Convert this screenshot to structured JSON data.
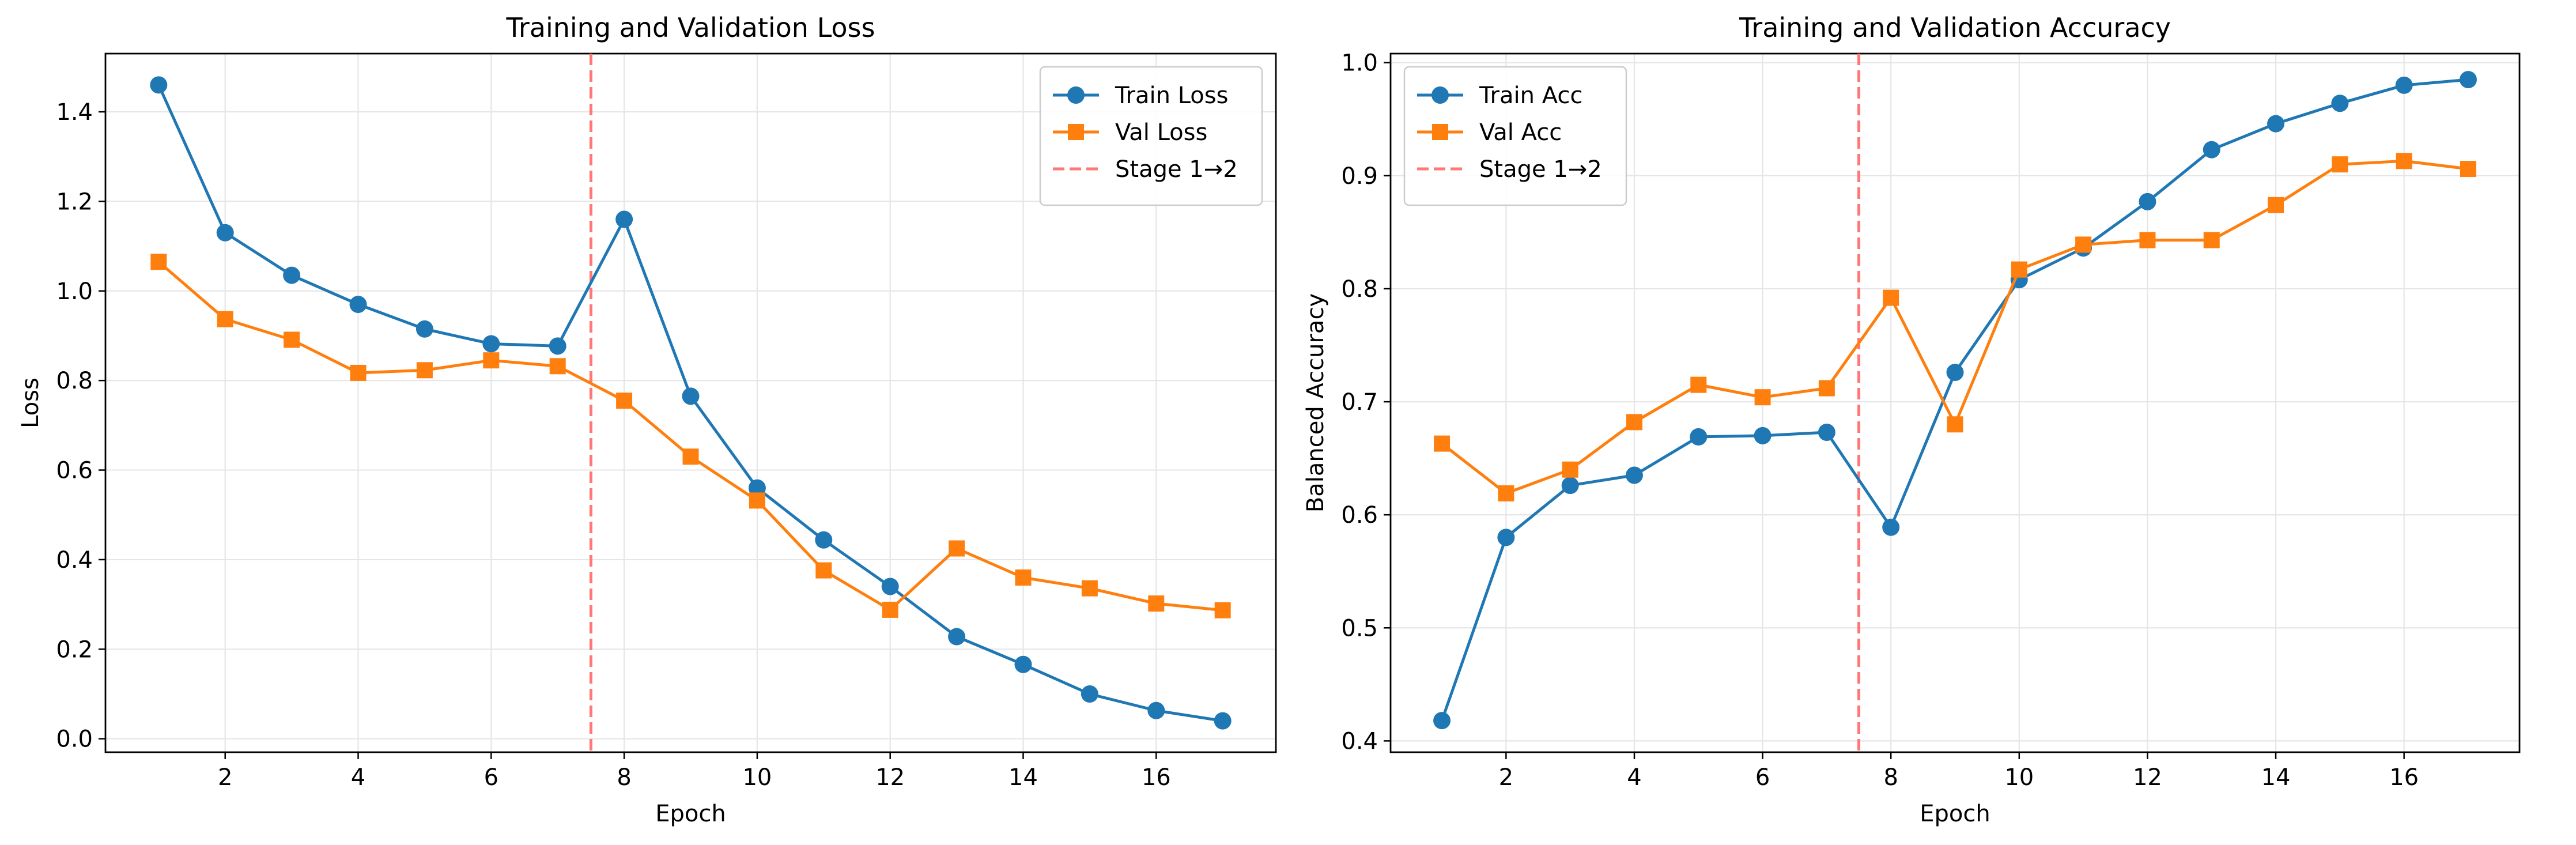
{
  "chart_data": [
    {
      "type": "line",
      "title": "Training and Validation Loss",
      "xlabel": "Epoch",
      "ylabel": "Loss",
      "x": [
        1,
        2,
        3,
        4,
        5,
        6,
        7,
        8,
        9,
        10,
        11,
        12,
        13,
        14,
        15,
        16,
        17
      ],
      "xlim": [
        0.2,
        17.8
      ],
      "ylim": [
        -0.03,
        1.53
      ],
      "xticks": [
        2,
        4,
        6,
        8,
        10,
        12,
        14,
        16
      ],
      "xtick_labels": [
        "2",
        "4",
        "6",
        "8",
        "10",
        "12",
        "14",
        "16"
      ],
      "yticks": [
        0.0,
        0.2,
        0.4,
        0.6,
        0.8,
        1.0,
        1.2,
        1.4
      ],
      "ytick_labels": [
        "0.0",
        "0.2",
        "0.4",
        "0.6",
        "0.8",
        "1.0",
        "1.2",
        "1.4"
      ],
      "grid": true,
      "legend_position": "upper right",
      "series": [
        {
          "name": "Train Loss",
          "color": "#1f77b4",
          "marker": "circle",
          "values": [
            1.46,
            1.13,
            1.035,
            0.97,
            0.915,
            0.882,
            0.877,
            1.16,
            0.765,
            0.56,
            0.444,
            0.34,
            0.228,
            0.166,
            0.1,
            0.063,
            0.04
          ]
        },
        {
          "name": "Val Loss",
          "color": "#ff7f0e",
          "marker": "square",
          "values": [
            1.065,
            0.937,
            0.891,
            0.817,
            0.823,
            0.845,
            0.832,
            0.755,
            0.63,
            0.532,
            0.376,
            0.288,
            0.425,
            0.36,
            0.336,
            0.302,
            0.287
          ]
        }
      ],
      "vline": {
        "name": "Stage 1→2",
        "x": 7.5,
        "color": "#ff7777",
        "style": "dashed"
      }
    },
    {
      "type": "line",
      "title": "Training and Validation Accuracy",
      "xlabel": "Epoch",
      "ylabel": "Balanced Accuracy",
      "x": [
        1,
        2,
        3,
        4,
        5,
        6,
        7,
        8,
        9,
        10,
        11,
        12,
        13,
        14,
        15,
        16,
        17
      ],
      "xlim": [
        0.2,
        17.8
      ],
      "ylim": [
        0.39,
        1.008
      ],
      "xticks": [
        2,
        4,
        6,
        8,
        10,
        12,
        14,
        16
      ],
      "xtick_labels": [
        "2",
        "4",
        "6",
        "8",
        "10",
        "12",
        "14",
        "16"
      ],
      "yticks": [
        0.4,
        0.5,
        0.6,
        0.7,
        0.8,
        0.9,
        1.0
      ],
      "ytick_labels": [
        "0.4",
        "0.5",
        "0.6",
        "0.7",
        "0.8",
        "0.9",
        "1.0"
      ],
      "grid": true,
      "legend_position": "upper left",
      "series": [
        {
          "name": "Train Acc",
          "color": "#1f77b4",
          "marker": "circle",
          "values": [
            0.418,
            0.58,
            0.626,
            0.635,
            0.669,
            0.67,
            0.673,
            0.589,
            0.726,
            0.808,
            0.836,
            0.877,
            0.923,
            0.946,
            0.964,
            0.98,
            0.985
          ]
        },
        {
          "name": "Val Acc",
          "color": "#ff7f0e",
          "marker": "square",
          "values": [
            0.663,
            0.619,
            0.64,
            0.682,
            0.715,
            0.704,
            0.712,
            0.792,
            0.68,
            0.817,
            0.839,
            0.843,
            0.843,
            0.874,
            0.91,
            0.913,
            0.906
          ]
        }
      ],
      "vline": {
        "name": "Stage 1→2",
        "x": 7.5,
        "color": "#ff7777",
        "style": "dashed"
      }
    }
  ]
}
